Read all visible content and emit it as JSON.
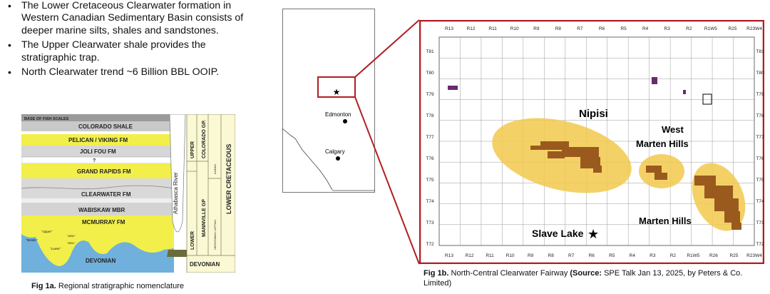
{
  "bullets": [
    "The Lower Cretaceous Clearwater formation in Western Canadian Sedimentary Basin consists of deeper marine silts, shales and sandstones.",
    "The Upper Clearwater shale provides the stratigraphic trap.",
    "North Clearwater trend ~6 Billion BBL OOIP."
  ],
  "fig1a": {
    "caption_bold": "Fig 1a.",
    "caption_text": " Regional stratigraphic nomenclature",
    "layers": {
      "base_fish": "BASE OF FISH SCALES",
      "colorado_shale": "COLORADO SHALE",
      "pelican": "PELICAN / VIKING FM",
      "joli_fou": "JOLI FOU FM",
      "question": "?",
      "grand_rapids": "GRAND RAPIDS FM",
      "clearwater": "CLEARWATER FM",
      "wabiskaw": "WABISKAW MBR",
      "mcmurray": "MCMURRAY FM",
      "upper_small": "\"Upper\"",
      "middle_small": "\"Middle\"",
      "lower_small": "\"Lower\"",
      "wb2": "\"WB2\"",
      "wb1": "\"WB1\"",
      "devonian": "DEVONIAN",
      "river": "Athabasca River"
    },
    "columns": {
      "upper": "UPPER",
      "lower": "LOWER",
      "colorado_gp": "COLORADO GP.",
      "mannville_gp": "MANNVILLE GP",
      "albian": "ALBIAN",
      "neocomian": "NEOCOMIAN / APTIAN",
      "lower_cretaceous": "LOWER CRETACEOUS",
      "devonian": "DEVONIAN"
    }
  },
  "alberta": {
    "cities": [
      "Edmonton",
      "Calgary"
    ]
  },
  "fig1b": {
    "caption_bold_1": "Fig 1b.",
    "caption_text_1": " North-Central Clearwater Fairway ",
    "caption_bold_2": "(Source:",
    "caption_text_2": " SPE Talk Jan 13, 2025, by Peters & Co. Limited)",
    "top_ranges": [
      "R13",
      "R12",
      "R11",
      "R10",
      "R9",
      "R8",
      "R7",
      "R6",
      "R5",
      "R4",
      "R3",
      "R2",
      "R1W5",
      "R25",
      "R23W4"
    ],
    "bottom_ranges": [
      "R13",
      "R12",
      "R11",
      "R10",
      "R9",
      "R8",
      "R7",
      "R6",
      "R5",
      "R4",
      "R3",
      "R2",
      "R1W5",
      "R26",
      "R25",
      "R23W4"
    ],
    "townships": [
      "T81",
      "T80",
      "T79",
      "T78",
      "T77",
      "T76",
      "T75",
      "T74",
      "T73",
      "T72"
    ],
    "areas": {
      "nipisi": "Nipisi",
      "west_marten": "West",
      "west_marten_2": "Marten Hills",
      "marten_hills": "Marten Hills",
      "slave_lake": "Slave Lake"
    },
    "colors": {
      "play": "#f2c94c",
      "frame": "#b11e22",
      "development": "#9a5a1e"
    }
  }
}
